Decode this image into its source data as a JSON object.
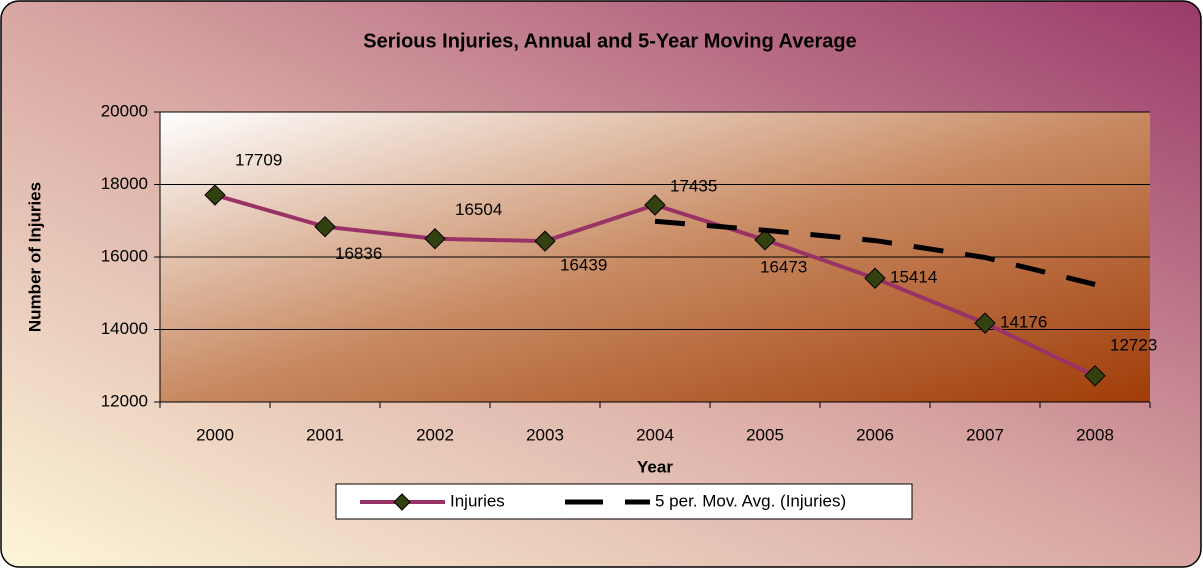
{
  "chart_data": {
    "type": "line",
    "title": "Serious Injuries, Annual and 5-Year Moving Average",
    "x_label": "Year",
    "y_label": "Number of Injuries",
    "categories": [
      "2000",
      "2001",
      "2002",
      "2003",
      "2004",
      "2005",
      "2006",
      "2007",
      "2008"
    ],
    "series": [
      {
        "name": "Injuries",
        "color": "#993366",
        "marker_color": "#334010",
        "values": [
          17709,
          16836,
          16504,
          16439,
          17435,
          16473,
          15414,
          14176,
          12723
        ],
        "data_labels": true
      },
      {
        "name": "5 per. Mov. Avg. (Injuries)",
        "color": "#000000",
        "dashed": true,
        "values": [
          null,
          null,
          null,
          null,
          16985,
          16737,
          16453,
          15987,
          15244
        ]
      }
    ],
    "ylim": [
      12000,
      20000
    ],
    "yticks": [
      12000,
      14000,
      16000,
      18000,
      20000
    ],
    "grid": true,
    "legend": "bottom"
  }
}
